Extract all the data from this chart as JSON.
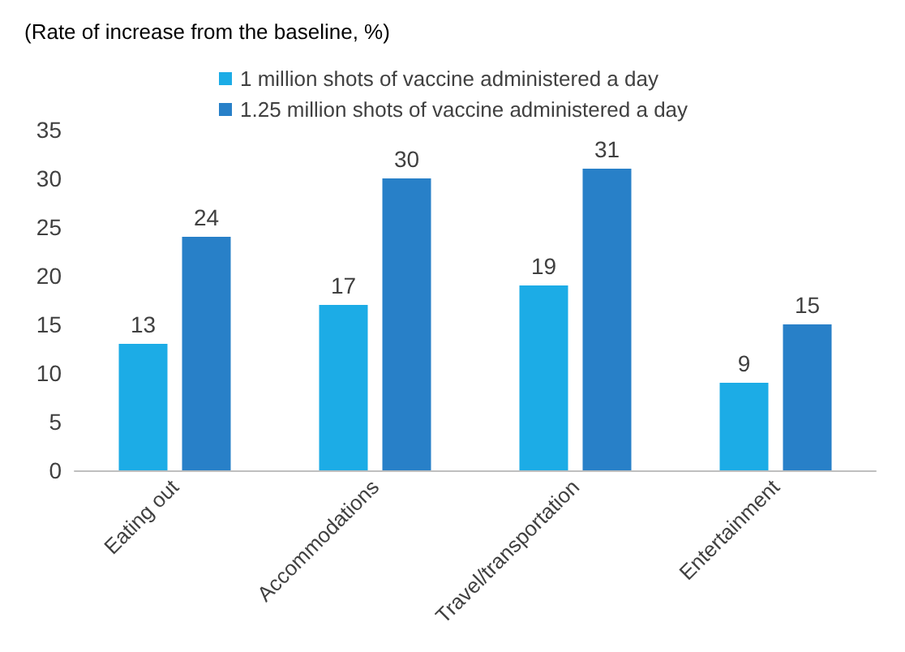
{
  "chart_data": {
    "type": "bar",
    "ylabel": "(Rate of increase from the baseline, %)",
    "categories": [
      "Eating out",
      "Accommodations",
      "Travel/transportation",
      "Entertainment"
    ],
    "series": [
      {
        "name": "1 million shots of vaccine administered a day",
        "color": "#1cace6",
        "values": [
          13,
          17,
          19,
          9
        ]
      },
      {
        "name": "1.25 million shots of vaccine administered a day",
        "color": "#2880c8",
        "values": [
          24,
          30,
          31,
          15
        ]
      }
    ],
    "ylim": [
      0,
      35
    ],
    "yticks": [
      0,
      5,
      10,
      15,
      20,
      25,
      30,
      35
    ],
    "grid": false,
    "legend": "top",
    "data_labels": true
  }
}
